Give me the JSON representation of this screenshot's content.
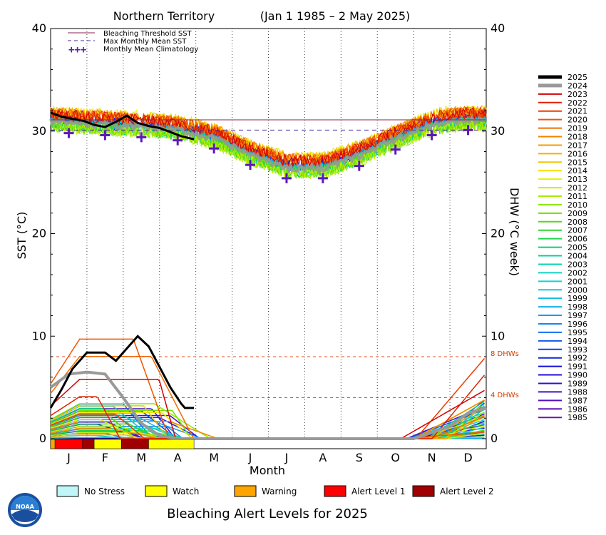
{
  "chart_data": {
    "type": "line",
    "title": "Northern Territory",
    "date_range": "(Jan 1 1985 – 2 May 2025)",
    "xlabel": "Month",
    "ylabel_left": "SST (°C)",
    "ylabel_right": "DHW (°C week)",
    "ylim": [
      0,
      40
    ],
    "y_ticks_left": [
      "0",
      "10",
      "20",
      "30",
      "40"
    ],
    "y_ticks_right": [
      "0",
      "10",
      "20",
      "30",
      "40"
    ],
    "months": [
      "J",
      "F",
      "M",
      "A",
      "M",
      "J",
      "J",
      "A",
      "S",
      "O",
      "N",
      "D"
    ],
    "legend_top": [
      {
        "label": "Bleaching Threshold SST",
        "style": "solid",
        "color": "#8b2252"
      },
      {
        "label": "Max Monthly Mean SST",
        "style": "dashed",
        "color": "#4b2a9e"
      },
      {
        "label": "Monthly Mean Climatology",
        "style": "plus",
        "color": "#5a1ab8"
      }
    ],
    "bleaching_threshold_sst": 31.1,
    "max_monthly_mean_sst": 30.1,
    "monthly_mean_climatology": [
      {
        "x": 0.5,
        "y": 29.8
      },
      {
        "x": 1.5,
        "y": 29.6
      },
      {
        "x": 2.5,
        "y": 29.4
      },
      {
        "x": 3.5,
        "y": 29.1
      },
      {
        "x": 4.5,
        "y": 28.3
      },
      {
        "x": 5.5,
        "y": 26.7
      },
      {
        "x": 6.5,
        "y": 25.4
      },
      {
        "x": 7.5,
        "y": 25.4
      },
      {
        "x": 8.5,
        "y": 26.6
      },
      {
        "x": 9.5,
        "y": 28.2
      },
      {
        "x": 10.5,
        "y": 29.6
      },
      {
        "x": 11.5,
        "y": 30.1
      }
    ],
    "dhw_reference_lines": [
      {
        "label": "8 DHWs",
        "value": 8
      },
      {
        "label": "4 DHWs",
        "value": 4
      }
    ],
    "series_2025_sst": [
      {
        "x": 0.0,
        "y": 31.8
      },
      {
        "x": 0.3,
        "y": 31.4
      },
      {
        "x": 0.6,
        "y": 31.2
      },
      {
        "x": 0.9,
        "y": 31.0
      },
      {
        "x": 1.2,
        "y": 30.6
      },
      {
        "x": 1.5,
        "y": 30.4
      },
      {
        "x": 1.8,
        "y": 30.9
      },
      {
        "x": 2.1,
        "y": 31.5
      },
      {
        "x": 2.4,
        "y": 30.8
      },
      {
        "x": 2.7,
        "y": 30.5
      },
      {
        "x": 3.0,
        "y": 30.3
      },
      {
        "x": 3.3,
        "y": 29.9
      },
      {
        "x": 3.6,
        "y": 29.5
      },
      {
        "x": 3.95,
        "y": 29.2
      }
    ],
    "series_2025_dhw": [
      {
        "x": 0.0,
        "y": 3.0
      },
      {
        "x": 0.3,
        "y": 4.8
      },
      {
        "x": 0.6,
        "y": 6.8
      },
      {
        "x": 0.9,
        "y": 8.0
      },
      {
        "x": 1.0,
        "y": 8.4
      },
      {
        "x": 1.5,
        "y": 8.4
      },
      {
        "x": 1.8,
        "y": 7.6
      },
      {
        "x": 2.1,
        "y": 8.8
      },
      {
        "x": 2.4,
        "y": 10.0
      },
      {
        "x": 2.7,
        "y": 9.0
      },
      {
        "x": 3.0,
        "y": 7.0
      },
      {
        "x": 3.3,
        "y": 5.0
      },
      {
        "x": 3.6,
        "y": 3.4
      },
      {
        "x": 3.7,
        "y": 3.0
      },
      {
        "x": 3.95,
        "y": 3.0
      }
    ],
    "series_2024_dhw": [
      {
        "x": 0.0,
        "y": 5.0
      },
      {
        "x": 0.5,
        "y": 6.3
      },
      {
        "x": 1.0,
        "y": 6.5
      },
      {
        "x": 1.5,
        "y": 6.3
      },
      {
        "x": 2.0,
        "y": 4.0
      },
      {
        "x": 2.5,
        "y": 1.5
      },
      {
        "x": 3.0,
        "y": 0.3
      },
      {
        "x": 3.5,
        "y": 0.0
      },
      {
        "x": 10.0,
        "y": 0.0
      },
      {
        "x": 11.0,
        "y": 1.2
      },
      {
        "x": 11.5,
        "y": 2.5
      },
      {
        "x": 12.0,
        "y": 3.0
      }
    ],
    "legend_years": [
      "2025",
      "2024",
      "2023",
      "2022",
      "2021",
      "2020",
      "2019",
      "2018",
      "2017",
      "2016",
      "2015",
      "2014",
      "2013",
      "2012",
      "2011",
      "2010",
      "2009",
      "2008",
      "2007",
      "2006",
      "2005",
      "2004",
      "2003",
      "2002",
      "2001",
      "2000",
      "1999",
      "1998",
      "1997",
      "1996",
      "1995",
      "1994",
      "1993",
      "1992",
      "1991",
      "1990",
      "1989",
      "1988",
      "1987",
      "1986",
      "1985"
    ],
    "year_colors": [
      "#000000",
      "#999999",
      "#d30000",
      "#e02000",
      "#ee3a00",
      "#f05500",
      "#f26d00",
      "#f58300",
      "#f59a00",
      "#f5b000",
      "#f0c800",
      "#f0e000",
      "#e6f000",
      "#c8f000",
      "#a8ec00",
      "#8ce600",
      "#70e000",
      "#50dc10",
      "#30d830",
      "#20d450",
      "#10d070",
      "#10cc90",
      "#10d0b0",
      "#10d0c8",
      "#10d0d8",
      "#10c8e0",
      "#10bce8",
      "#10b0ec",
      "#109cf0",
      "#1088f0",
      "#1070f0",
      "#1058ec",
      "#1040e8",
      "#1028e0",
      "#1010dc",
      "#2010d8",
      "#3010d0",
      "#4010c8",
      "#5010c0",
      "#6010b8",
      "#7010b0"
    ],
    "alert_legend": [
      {
        "label": "No Stress",
        "color": "#c0f6f8"
      },
      {
        "label": "Watch",
        "color": "#ffff00"
      },
      {
        "label": "Warning",
        "color": "#ffa500"
      },
      {
        "label": "Alert Level 1",
        "color": "#ff0000"
      },
      {
        "label": "Alert Level 2",
        "color": "#a00000"
      }
    ],
    "alert_bar_2025": [
      {
        "x0": 0.0,
        "x1": 0.12,
        "level": "Warning"
      },
      {
        "x0": 0.12,
        "x1": 0.88,
        "level": "Alert Level 1"
      },
      {
        "x0": 0.88,
        "x1": 1.2,
        "level": "Alert Level 2"
      },
      {
        "x0": 1.2,
        "x1": 1.95,
        "level": "Watch"
      },
      {
        "x0": 1.95,
        "x1": 2.7,
        "level": "Alert Level 2"
      },
      {
        "x0": 2.7,
        "x1": 3.95,
        "level": "Watch"
      }
    ],
    "footer_title": "Bleaching Alert Levels for 2025",
    "logo_text": "NOAA"
  }
}
